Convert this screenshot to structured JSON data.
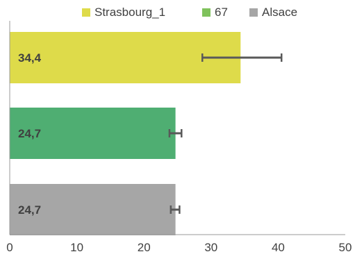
{
  "chart_data": {
    "type": "bar",
    "orientation": "horizontal",
    "legend_position": "top",
    "grid": false,
    "xlim": [
      0,
      50
    ],
    "x_ticks": [
      {
        "value": 0,
        "label": "0"
      },
      {
        "value": 10,
        "label": "10"
      },
      {
        "value": 20,
        "label": "20"
      },
      {
        "value": 30,
        "label": "30"
      },
      {
        "value": 40,
        "label": "40"
      },
      {
        "value": 50,
        "label": "50"
      }
    ],
    "series": [
      {
        "name": "Strasbourg_1",
        "value": 34.4,
        "label": "34,4",
        "error_low": 28.7,
        "error_high": 40.5,
        "color": "#DEDB4A"
      },
      {
        "name": "67",
        "value": 24.7,
        "label": "24,7",
        "error_low": 23.8,
        "error_high": 25.6,
        "color": "#4FAE72"
      },
      {
        "name": "Alsace",
        "value": 24.7,
        "label": "24,7",
        "error_low": 24.0,
        "error_high": 25.3,
        "color": "#A6A6A6"
      }
    ],
    "legend_colors": [
      "#DEDB4A",
      "#7FC25C",
      "#A6A6A6"
    ],
    "axis_color": "#999999",
    "errorbar_color": "#595959",
    "label_color": "#404040"
  }
}
